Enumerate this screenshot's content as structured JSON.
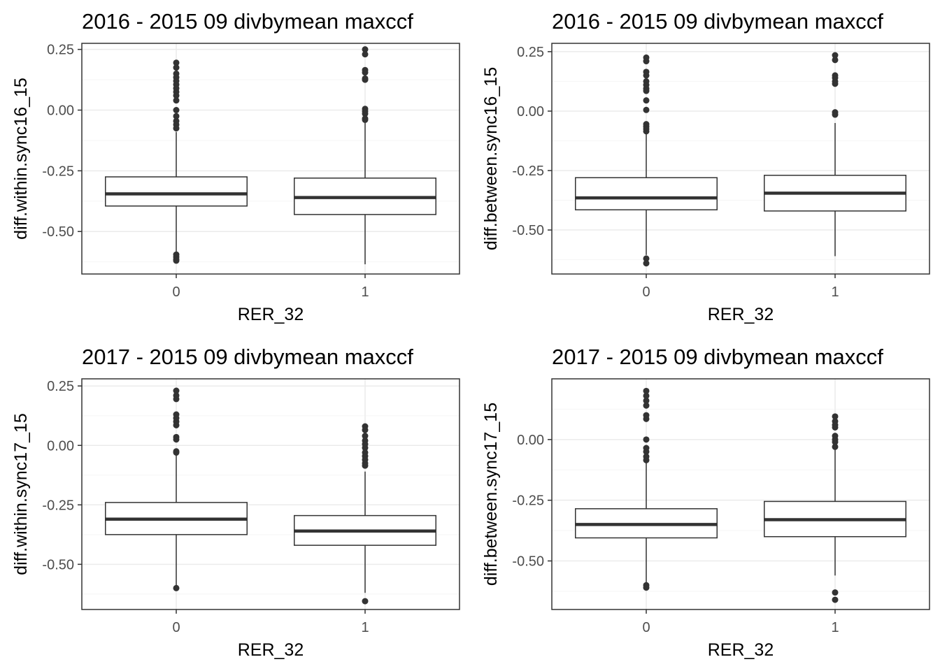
{
  "colors": {
    "panel_border": "#333333",
    "grid_major": "#ebebeb",
    "grid_minor": "#f5f5f5",
    "box_line": "#333333",
    "median": "#333333",
    "outlier": "#333333",
    "tick_text": "#4d4d4d",
    "title_text": "#000000"
  },
  "chart_data": [
    {
      "type": "box",
      "title": "2016 - 2015 09 divbymean maxccf",
      "xlabel": "RER_32",
      "ylabel": "diff.within.sync16_15",
      "categories": [
        "0",
        "1"
      ],
      "ylim": [
        -0.675,
        0.275
      ],
      "yticks": [
        0.25,
        0.0,
        -0.25,
        -0.5
      ],
      "ytick_labels": [
        "0.25",
        "0.00",
        "-0.25",
        "-0.50"
      ],
      "grid": true,
      "boxes": [
        {
          "category": "0",
          "whisker_low": -0.585,
          "q1": -0.395,
          "median": -0.345,
          "q3": -0.275,
          "whisker_high": -0.09,
          "outliers": [
            0.195,
            0.175,
            0.15,
            0.135,
            0.12,
            0.105,
            0.09,
            0.075,
            0.06,
            0.04,
            0.0,
            -0.025,
            -0.045,
            -0.06,
            -0.075,
            -0.595,
            -0.605,
            -0.615,
            -0.62
          ]
        },
        {
          "category": "1",
          "whisker_low": -0.635,
          "q1": -0.43,
          "median": -0.36,
          "q3": -0.28,
          "whisker_high": -0.05,
          "outliers": [
            0.25,
            0.23,
            0.165,
            0.155,
            0.13,
            0.125,
            0.005,
            -0.005,
            -0.015,
            -0.035,
            -0.04
          ]
        }
      ]
    },
    {
      "type": "box",
      "title": "2016 - 2015 09 divbymean maxccf",
      "xlabel": "RER_32",
      "ylabel": "diff.between.sync16_15",
      "categories": [
        "0",
        "1"
      ],
      "ylim": [
        -0.685,
        0.285
      ],
      "yticks": [
        0.25,
        0.0,
        -0.25,
        -0.5
      ],
      "ytick_labels": [
        "0.25",
        "0.00",
        "-0.25",
        "-0.50"
      ],
      "grid": true,
      "boxes": [
        {
          "category": "0",
          "whisker_low": -0.605,
          "q1": -0.415,
          "median": -0.365,
          "q3": -0.28,
          "whisker_high": -0.09,
          "outliers": [
            0.225,
            0.21,
            0.165,
            0.15,
            0.125,
            0.11,
            0.095,
            0.085,
            0.045,
            0.005,
            -0.055,
            -0.065,
            -0.075,
            -0.085,
            -0.62,
            -0.64
          ]
        },
        {
          "category": "1",
          "whisker_low": -0.61,
          "q1": -0.42,
          "median": -0.345,
          "q3": -0.27,
          "whisker_high": -0.05,
          "outliers": [
            0.235,
            0.215,
            0.15,
            0.14,
            0.125,
            0.115,
            -0.005,
            -0.015
          ]
        }
      ]
    },
    {
      "type": "box",
      "title": "2017 - 2015 09 divbymean maxccf",
      "xlabel": "RER_32",
      "ylabel": "diff.within.sync17_15",
      "categories": [
        "0",
        "1"
      ],
      "ylim": [
        -0.69,
        0.28
      ],
      "yticks": [
        0.25,
        0.0,
        -0.25,
        -0.5
      ],
      "ytick_labels": [
        "0.25",
        "0.00",
        "-0.25",
        "-0.50"
      ],
      "grid": true,
      "boxes": [
        {
          "category": "0",
          "whisker_low": -0.6,
          "q1": -0.375,
          "median": -0.31,
          "q3": -0.24,
          "whisker_high": -0.04,
          "outliers": [
            0.23,
            0.21,
            0.195,
            0.13,
            0.115,
            0.1,
            0.085,
            0.035,
            0.025,
            -0.025,
            -0.03,
            -0.6
          ]
        },
        {
          "category": "1",
          "whisker_low": -0.62,
          "q1": -0.42,
          "median": -0.36,
          "q3": -0.295,
          "whisker_high": -0.11,
          "outliers": [
            0.08,
            0.065,
            0.04,
            0.02,
            0.005,
            -0.01,
            -0.03,
            -0.045,
            -0.06,
            -0.075,
            -0.085,
            -0.655
          ]
        }
      ]
    },
    {
      "type": "box",
      "title": "2017 - 2015 09 divbymean maxccf",
      "xlabel": "RER_32",
      "ylabel": "diff.between.sync17_15",
      "categories": [
        "0",
        "1"
      ],
      "ylim": [
        -0.7,
        0.25
      ],
      "yticks": [
        0.0,
        -0.25,
        -0.5
      ],
      "ytick_labels": [
        "0.00",
        "-0.25",
        "-0.50"
      ],
      "grid": true,
      "boxes": [
        {
          "category": "0",
          "whisker_low": -0.595,
          "q1": -0.405,
          "median": -0.35,
          "q3": -0.285,
          "whisker_high": -0.09,
          "outliers": [
            0.2,
            0.18,
            0.16,
            0.14,
            0.1,
            0.085,
            0.0,
            -0.035,
            -0.05,
            -0.07,
            -0.085,
            -0.6,
            -0.61
          ]
        },
        {
          "category": "1",
          "whisker_low": -0.56,
          "q1": -0.4,
          "median": -0.33,
          "q3": -0.255,
          "whisker_high": -0.04,
          "outliers": [
            0.095,
            0.075,
            0.06,
            0.05,
            0.015,
            0.0,
            -0.01,
            -0.03,
            -0.63,
            -0.66
          ]
        }
      ]
    }
  ]
}
